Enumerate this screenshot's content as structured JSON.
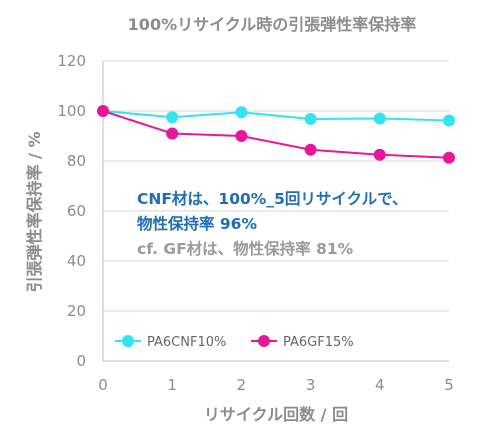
{
  "chart_data": {
    "type": "line",
    "title": "100%リサイクル時の引張弾性率保持率",
    "xlabel": "リサイクル回数 / 回",
    "ylabel": "引張弾性率保持率 / %",
    "x": [
      0,
      1,
      2,
      3,
      4,
      5
    ],
    "xlim": [
      0,
      5
    ],
    "ylim": [
      0,
      120
    ],
    "yticks": [
      0,
      20,
      40,
      60,
      80,
      100,
      120
    ],
    "grid": "horizontal",
    "legend_position": "bottom-left",
    "series": [
      {
        "name": "PA6CNF10%",
        "color": "#33e3ef",
        "values": [
          100,
          97.5,
          99.5,
          96.8,
          97,
          96.2
        ]
      },
      {
        "name": "PA6GF15%",
        "color": "#e8179a",
        "values": [
          100,
          91,
          90,
          84.5,
          82.5,
          81.3
        ]
      }
    ],
    "annotations": [
      {
        "text": "CNF材は、100%_5回リサイクルで、",
        "style": "blue"
      },
      {
        "text": "物性保持率 96%",
        "style": "blue"
      },
      {
        "text": "cf. GF材は、物性保持率 81%",
        "style": "gray"
      }
    ]
  }
}
